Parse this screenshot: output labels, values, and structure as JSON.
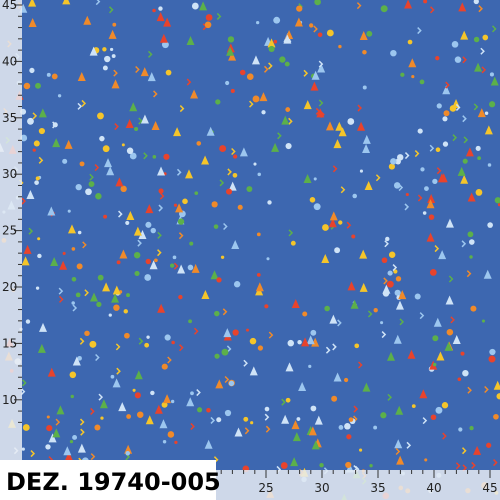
{
  "ruler": {
    "vertical": [
      45,
      40,
      35,
      30,
      25,
      20,
      15,
      10
    ],
    "horizontal": [
      25,
      30,
      35,
      40,
      45
    ]
  },
  "label": "DEZ. 19740-005"
}
